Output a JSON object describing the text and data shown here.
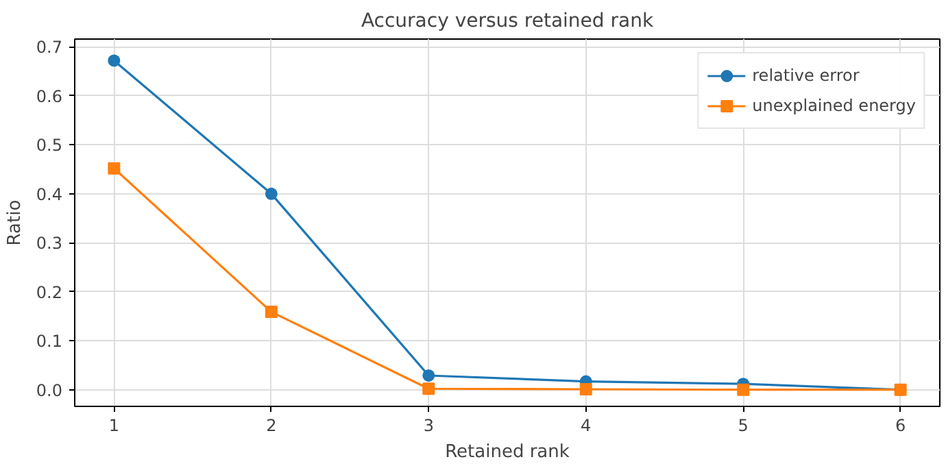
{
  "chart_data": {
    "type": "line",
    "title": "Accuracy versus retained rank",
    "xlabel": "Retained rank",
    "ylabel": "Ratio",
    "x": [
      1,
      2,
      3,
      4,
      5,
      6
    ],
    "series": [
      {
        "name": "relative error",
        "color": "#1f77b4",
        "marker": "circle",
        "values": [
          0.672,
          0.4,
          0.029,
          0.017,
          0.012,
          0.0
        ]
      },
      {
        "name": "unexplained energy",
        "color": "#ff7f0e",
        "marker": "square",
        "values": [
          0.452,
          0.159,
          0.002,
          0.001,
          0.0,
          0.0
        ]
      }
    ],
    "xlim": [
      0.75,
      6.25
    ],
    "ylim": [
      -0.034,
      0.716
    ],
    "xticks": [
      1,
      2,
      3,
      4,
      5,
      6
    ],
    "yticks": [
      {
        "value": 0,
        "label": "0.0"
      },
      0.1,
      0.2,
      0.3,
      0.4,
      0.5,
      0.6,
      0.7
    ],
    "grid": true,
    "legend": "top right",
    "line_style": "solid"
  }
}
